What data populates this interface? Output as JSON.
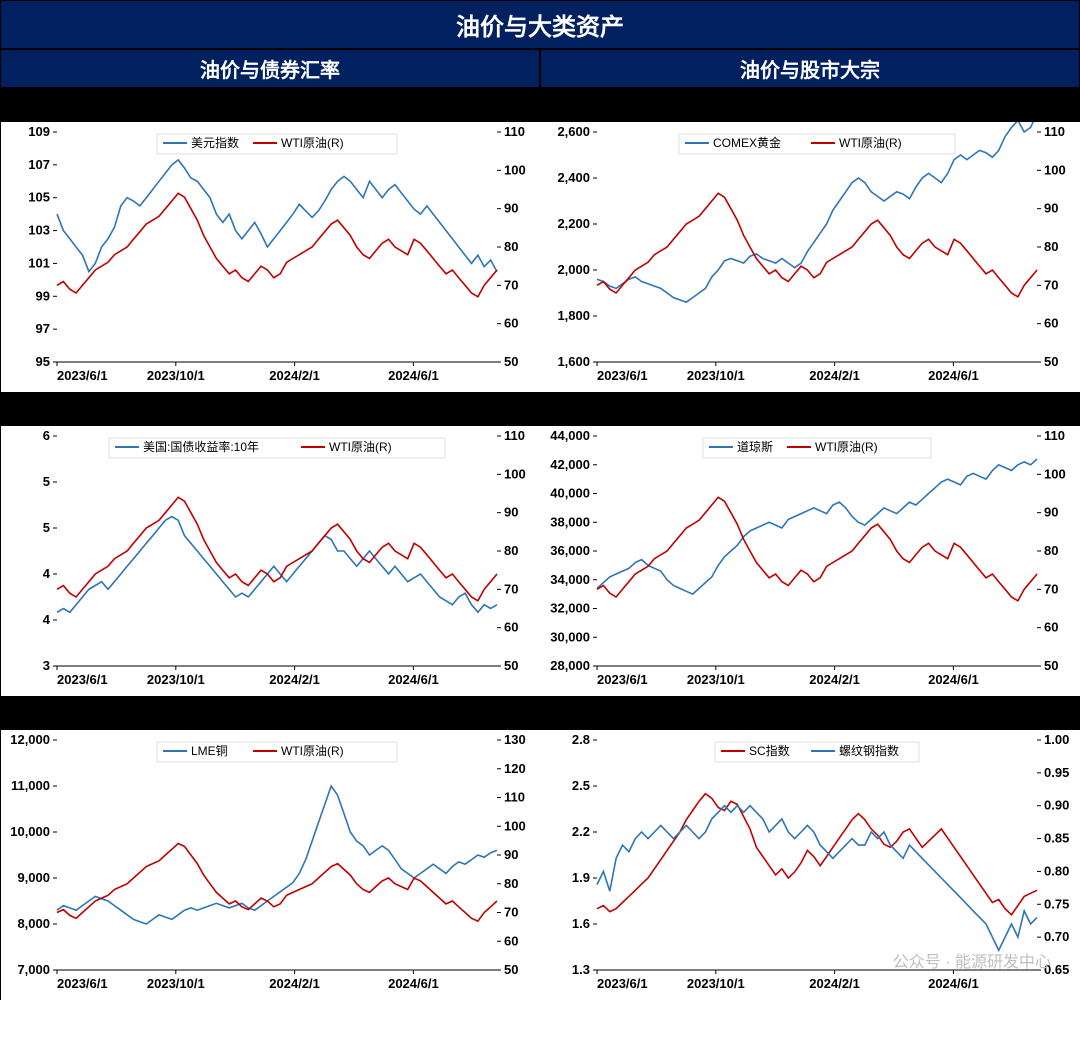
{
  "header": {
    "main_title": "油价与大类资产",
    "sub_left": "油价与债券汇率",
    "sub_right": "油价与股市大宗"
  },
  "colors": {
    "blue": "#2e75b6",
    "red": "#c00000",
    "border": "#000000",
    "bg": "#ffffff",
    "header_bg": "#002060",
    "header_text": "#ffffff",
    "band_bg": "#000000",
    "watermark": "#bfbfbf"
  },
  "x_ticks": [
    "2023/6/1",
    "2023/10/1",
    "2024/2/1",
    "2024/6/1"
  ],
  "watermark_text": "公众号 · 能源研发中心",
  "charts": [
    {
      "id": "c1",
      "legend": [
        {
          "label": "美元指数",
          "color_key": "blue"
        },
        {
          "label": "WTI原油(R)",
          "color_key": "red"
        }
      ],
      "left_axis": {
        "min": 95,
        "max": 109,
        "step": 2
      },
      "right_axis": {
        "min": 50,
        "max": 110,
        "step": 10
      },
      "series": [
        {
          "axis": "left",
          "color_key": "blue",
          "values": [
            104.0,
            103.0,
            102.5,
            102.0,
            101.5,
            100.5,
            101.0,
            102.0,
            102.5,
            103.2,
            104.5,
            105.0,
            104.8,
            104.5,
            105.0,
            105.5,
            106.0,
            106.5,
            107.0,
            107.3,
            106.8,
            106.2,
            106.0,
            105.5,
            105.0,
            104.0,
            103.5,
            104.0,
            103.0,
            102.5,
            103.0,
            103.5,
            102.8,
            102.0,
            102.5,
            103.0,
            103.5,
            104.0,
            104.6,
            104.2,
            103.8,
            104.2,
            104.8,
            105.5,
            106.0,
            106.3,
            106.0,
            105.5,
            105.0,
            106.0,
            105.5,
            105.0,
            105.5,
            105.8,
            105.3,
            104.8,
            104.3,
            104.0,
            104.5,
            104.0,
            103.5,
            103.0,
            102.5,
            102.0,
            101.5,
            101.0,
            101.5,
            100.8,
            101.2,
            100.5
          ]
        },
        {
          "axis": "right",
          "color_key": "red",
          "values": [
            70,
            71,
            69,
            68,
            70,
            72,
            74,
            75,
            76,
            78,
            79,
            80,
            82,
            84,
            86,
            87,
            88,
            90,
            92,
            94,
            93,
            90,
            87,
            83,
            80,
            77,
            75,
            73,
            74,
            72,
            71,
            73,
            75,
            74,
            72,
            73,
            76,
            77,
            78,
            79,
            80,
            82,
            84,
            86,
            87,
            85,
            83,
            80,
            78,
            77,
            79,
            81,
            82,
            80,
            79,
            78,
            82,
            81,
            79,
            77,
            75,
            73,
            74,
            72,
            70,
            68,
            67,
            70,
            72,
            74
          ]
        }
      ]
    },
    {
      "id": "c2",
      "legend": [
        {
          "label": "COMEX黄金",
          "color_key": "blue"
        },
        {
          "label": "WTI原油(R)",
          "color_key": "red"
        }
      ],
      "left_axis": {
        "min": 1600,
        "max": 2600,
        "step": 200,
        "format": "comma"
      },
      "right_axis": {
        "min": 50,
        "max": 110,
        "step": 10
      },
      "series": [
        {
          "axis": "left",
          "color_key": "blue",
          "values": [
            1960,
            1950,
            1930,
            1920,
            1940,
            1960,
            1970,
            1950,
            1940,
            1930,
            1920,
            1900,
            1880,
            1870,
            1860,
            1880,
            1900,
            1920,
            1970,
            2000,
            2040,
            2050,
            2040,
            2030,
            2060,
            2070,
            2050,
            2040,
            2030,
            2050,
            2030,
            2010,
            2030,
            2080,
            2120,
            2160,
            2200,
            2260,
            2300,
            2340,
            2380,
            2400,
            2380,
            2340,
            2320,
            2300,
            2320,
            2340,
            2330,
            2310,
            2360,
            2400,
            2420,
            2400,
            2380,
            2420,
            2480,
            2500,
            2480,
            2500,
            2520,
            2510,
            2490,
            2520,
            2580,
            2620,
            2650,
            2600,
            2620,
            2680
          ]
        },
        {
          "axis": "right",
          "color_key": "red",
          "values": [
            70,
            71,
            69,
            68,
            70,
            72,
            74,
            75,
            76,
            78,
            79,
            80,
            82,
            84,
            86,
            87,
            88,
            90,
            92,
            94,
            93,
            90,
            87,
            83,
            80,
            77,
            75,
            73,
            74,
            72,
            71,
            73,
            75,
            74,
            72,
            73,
            76,
            77,
            78,
            79,
            80,
            82,
            84,
            86,
            87,
            85,
            83,
            80,
            78,
            77,
            79,
            81,
            82,
            80,
            79,
            78,
            82,
            81,
            79,
            77,
            75,
            73,
            74,
            72,
            70,
            68,
            67,
            70,
            72,
            74
          ]
        }
      ]
    },
    {
      "id": "c3",
      "legend": [
        {
          "label": "美国:国债收益率:10年",
          "color_key": "blue"
        },
        {
          "label": "WTI原油(R)",
          "color_key": "red"
        }
      ],
      "left_axis": {
        "min": 3,
        "max": 6,
        "ticks": [
          3,
          4,
          4,
          5,
          5,
          6
        ]
      },
      "right_axis": {
        "min": 50,
        "max": 110,
        "step": 10
      },
      "series": [
        {
          "axis": "left",
          "color_key": "blue",
          "values": [
            3.7,
            3.75,
            3.7,
            3.8,
            3.9,
            4.0,
            4.05,
            4.1,
            4.0,
            4.1,
            4.2,
            4.3,
            4.4,
            4.5,
            4.6,
            4.7,
            4.8,
            4.9,
            4.95,
            4.9,
            4.7,
            4.6,
            4.5,
            4.4,
            4.3,
            4.2,
            4.1,
            4.0,
            3.9,
            3.95,
            3.9,
            4.0,
            4.1,
            4.2,
            4.3,
            4.2,
            4.1,
            4.2,
            4.3,
            4.4,
            4.5,
            4.6,
            4.7,
            4.65,
            4.5,
            4.5,
            4.4,
            4.3,
            4.4,
            4.5,
            4.4,
            4.3,
            4.2,
            4.3,
            4.2,
            4.1,
            4.15,
            4.2,
            4.1,
            4.0,
            3.9,
            3.85,
            3.8,
            3.9,
            3.95,
            3.8,
            3.7,
            3.8,
            3.75,
            3.8
          ]
        },
        {
          "axis": "right",
          "color_key": "red",
          "values": [
            70,
            71,
            69,
            68,
            70,
            72,
            74,
            75,
            76,
            78,
            79,
            80,
            82,
            84,
            86,
            87,
            88,
            90,
            92,
            94,
            93,
            90,
            87,
            83,
            80,
            77,
            75,
            73,
            74,
            72,
            71,
            73,
            75,
            74,
            72,
            73,
            76,
            77,
            78,
            79,
            80,
            82,
            84,
            86,
            87,
            85,
            83,
            80,
            78,
            77,
            79,
            81,
            82,
            80,
            79,
            78,
            82,
            81,
            79,
            77,
            75,
            73,
            74,
            72,
            70,
            68,
            67,
            70,
            72,
            74
          ]
        }
      ]
    },
    {
      "id": "c4",
      "legend": [
        {
          "label": "道琼斯",
          "color_key": "blue"
        },
        {
          "label": "WTI原油(R)",
          "color_key": "red"
        }
      ],
      "left_axis": {
        "min": 28000,
        "max": 44000,
        "step": 2000,
        "format": "comma"
      },
      "right_axis": {
        "min": 50,
        "max": 110,
        "step": 10
      },
      "series": [
        {
          "axis": "left",
          "color_key": "blue",
          "values": [
            33400,
            33800,
            34200,
            34400,
            34600,
            34800,
            35200,
            35400,
            35000,
            34800,
            34600,
            34000,
            33600,
            33400,
            33200,
            33000,
            33400,
            33800,
            34200,
            35000,
            35600,
            36000,
            36400,
            37000,
            37400,
            37600,
            37800,
            38000,
            37800,
            37600,
            38200,
            38400,
            38600,
            38800,
            39000,
            38800,
            38600,
            39200,
            39400,
            39000,
            38400,
            38000,
            37800,
            38200,
            38600,
            39000,
            38800,
            38600,
            39000,
            39400,
            39200,
            39600,
            40000,
            40400,
            40800,
            41000,
            40800,
            40600,
            41200,
            41400,
            41200,
            41000,
            41600,
            42000,
            41800,
            41600,
            42000,
            42200,
            42000,
            42400
          ]
        },
        {
          "axis": "right",
          "color_key": "red",
          "values": [
            70,
            71,
            69,
            68,
            70,
            72,
            74,
            75,
            76,
            78,
            79,
            80,
            82,
            84,
            86,
            87,
            88,
            90,
            92,
            94,
            93,
            90,
            87,
            83,
            80,
            77,
            75,
            73,
            74,
            72,
            71,
            73,
            75,
            74,
            72,
            73,
            76,
            77,
            78,
            79,
            80,
            82,
            84,
            86,
            87,
            85,
            83,
            80,
            78,
            77,
            79,
            81,
            82,
            80,
            79,
            78,
            82,
            81,
            79,
            77,
            75,
            73,
            74,
            72,
            70,
            68,
            67,
            70,
            72,
            74
          ]
        }
      ]
    },
    {
      "id": "c5",
      "legend": [
        {
          "label": "LME铜",
          "color_key": "blue"
        },
        {
          "label": "WTI原油(R)",
          "color_key": "red"
        }
      ],
      "left_axis": {
        "min": 7000,
        "max": 12000,
        "step": 1000,
        "format": "comma"
      },
      "right_axis": {
        "min": 50,
        "max": 130,
        "step": 10
      },
      "series": [
        {
          "axis": "left",
          "color_key": "blue",
          "values": [
            8300,
            8400,
            8350,
            8300,
            8400,
            8500,
            8600,
            8550,
            8500,
            8400,
            8300,
            8200,
            8100,
            8050,
            8000,
            8100,
            8200,
            8150,
            8100,
            8200,
            8300,
            8350,
            8300,
            8350,
            8400,
            8450,
            8400,
            8350,
            8400,
            8450,
            8350,
            8300,
            8400,
            8500,
            8600,
            8700,
            8800,
            8900,
            9100,
            9400,
            9800,
            10200,
            10600,
            11000,
            10800,
            10400,
            10000,
            9800,
            9700,
            9500,
            9600,
            9700,
            9600,
            9400,
            9200,
            9100,
            9000,
            9100,
            9200,
            9300,
            9200,
            9100,
            9250,
            9350,
            9300,
            9400,
            9500,
            9450,
            9550,
            9600
          ]
        },
        {
          "axis": "right",
          "color_key": "red",
          "values": [
            70,
            71,
            69,
            68,
            70,
            72,
            74,
            75,
            76,
            78,
            79,
            80,
            82,
            84,
            86,
            87,
            88,
            90,
            92,
            94,
            93,
            90,
            87,
            83,
            80,
            77,
            75,
            73,
            74,
            72,
            71,
            73,
            75,
            74,
            72,
            73,
            76,
            77,
            78,
            79,
            80,
            82,
            84,
            86,
            87,
            85,
            83,
            80,
            78,
            77,
            79,
            81,
            82,
            80,
            79,
            78,
            82,
            81,
            79,
            77,
            75,
            73,
            74,
            72,
            70,
            68,
            67,
            70,
            72,
            74
          ]
        }
      ]
    },
    {
      "id": "c6",
      "legend": [
        {
          "label": "SC指数",
          "color_key": "red"
        },
        {
          "label": "螺纹钢指数",
          "color_key": "blue"
        }
      ],
      "left_axis": {
        "min": 1.3,
        "max": 2.8,
        "step": 0.3,
        "decimals": 1
      },
      "right_axis": {
        "min": 0.65,
        "max": 1.0,
        "step": 0.05,
        "decimals": 2
      },
      "series": [
        {
          "axis": "left",
          "color_key": "red",
          "values": [
            1.7,
            1.72,
            1.68,
            1.7,
            1.74,
            1.78,
            1.82,
            1.86,
            1.9,
            1.96,
            2.02,
            2.08,
            2.14,
            2.2,
            2.28,
            2.34,
            2.4,
            2.45,
            2.42,
            2.36,
            2.34,
            2.4,
            2.38,
            2.3,
            2.22,
            2.1,
            2.04,
            1.98,
            1.92,
            1.96,
            1.9,
            1.94,
            2.0,
            2.08,
            2.04,
            1.98,
            2.04,
            2.1,
            2.16,
            2.22,
            2.28,
            2.32,
            2.28,
            2.22,
            2.18,
            2.12,
            2.1,
            2.14,
            2.2,
            2.22,
            2.16,
            2.1,
            2.14,
            2.18,
            2.22,
            2.16,
            2.1,
            2.04,
            1.98,
            1.92,
            1.86,
            1.8,
            1.74,
            1.76,
            1.7,
            1.66,
            1.72,
            1.78,
            1.8,
            1.82
          ]
        },
        {
          "axis": "right",
          "color_key": "blue",
          "values": [
            0.78,
            0.8,
            0.77,
            0.82,
            0.84,
            0.83,
            0.85,
            0.86,
            0.85,
            0.86,
            0.87,
            0.86,
            0.85,
            0.86,
            0.87,
            0.86,
            0.85,
            0.86,
            0.88,
            0.89,
            0.9,
            0.89,
            0.9,
            0.89,
            0.9,
            0.89,
            0.88,
            0.86,
            0.87,
            0.88,
            0.86,
            0.85,
            0.86,
            0.87,
            0.86,
            0.84,
            0.83,
            0.82,
            0.83,
            0.84,
            0.85,
            0.84,
            0.84,
            0.86,
            0.85,
            0.86,
            0.84,
            0.83,
            0.82,
            0.84,
            0.83,
            0.82,
            0.81,
            0.8,
            0.79,
            0.78,
            0.77,
            0.76,
            0.75,
            0.74,
            0.73,
            0.72,
            0.7,
            0.68,
            0.7,
            0.72,
            0.7,
            0.74,
            0.72,
            0.73
          ]
        }
      ],
      "watermark": true
    }
  ]
}
